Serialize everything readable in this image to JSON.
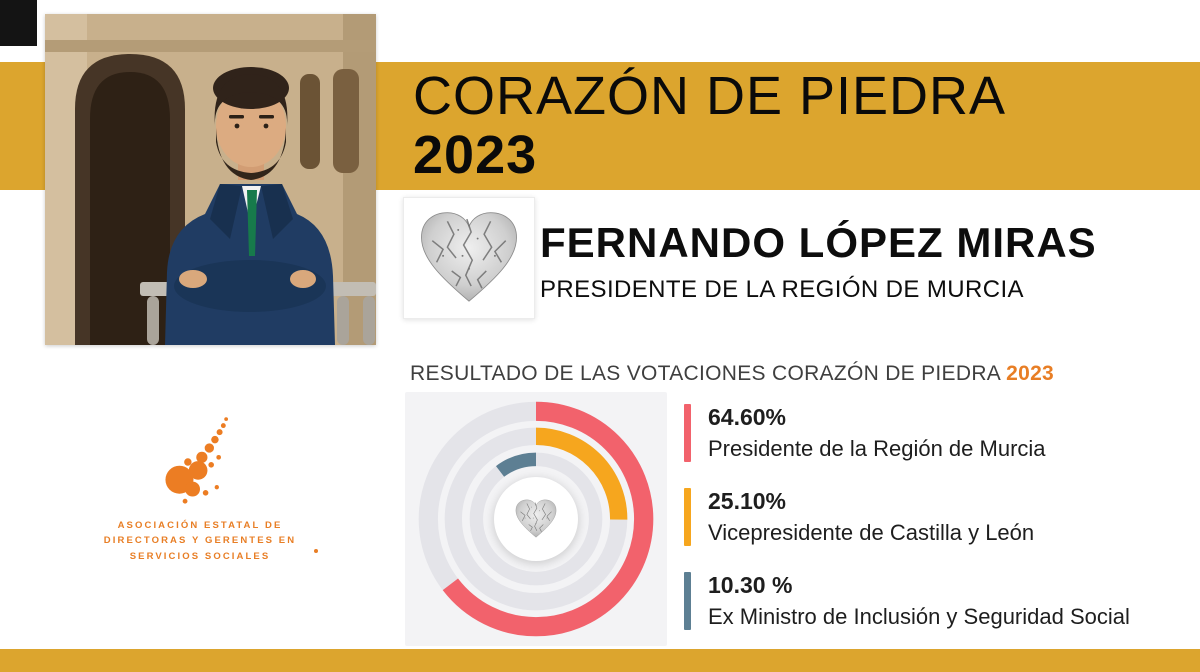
{
  "poster": {
    "title": "CORAZÓN DE PIEDRA",
    "year": "2023"
  },
  "awardee": {
    "name": "FERNANDO LÓPEZ MIRAS",
    "role": "PRESIDENTE DE LA REGIÓN DE MURCIA"
  },
  "results_header": {
    "text": "RESULTADO DE LAS VOTACIONES CORAZÓN DE PIEDRA",
    "year": "2023"
  },
  "chart_data": {
    "type": "donut",
    "title": "RESULTADO DE LAS VOTACIONES CORAZÓN DE PIEDRA 2023",
    "rings_order": "outer-to-inner",
    "legend_position": "right",
    "center_icon": "stone-heart",
    "series": [
      {
        "name": "Presidente de la Región de Murcia",
        "value": 64.6,
        "value_label": "64.60%",
        "color": "#F2626C"
      },
      {
        "name": "Vicepresidente de Castilla y León",
        "value": 25.1,
        "value_label": "25.10%",
        "color": "#F6A61E"
      },
      {
        "name": "Ex Ministro de Inclusión y Seguridad Social",
        "value": 10.3,
        "value_label": "10.30 %",
        "color": "#5D7F93"
      }
    ]
  },
  "association_logo": {
    "line1": "ASOCIACIÓN ESTATAL DE",
    "line2": "DIRECTORAS Y GERENTES EN",
    "line3": "SERVICIOS SOCIALES"
  },
  "colors": {
    "gold_band": "#DCA52E",
    "accent_orange": "#E87E25",
    "black_block": "#141414"
  }
}
